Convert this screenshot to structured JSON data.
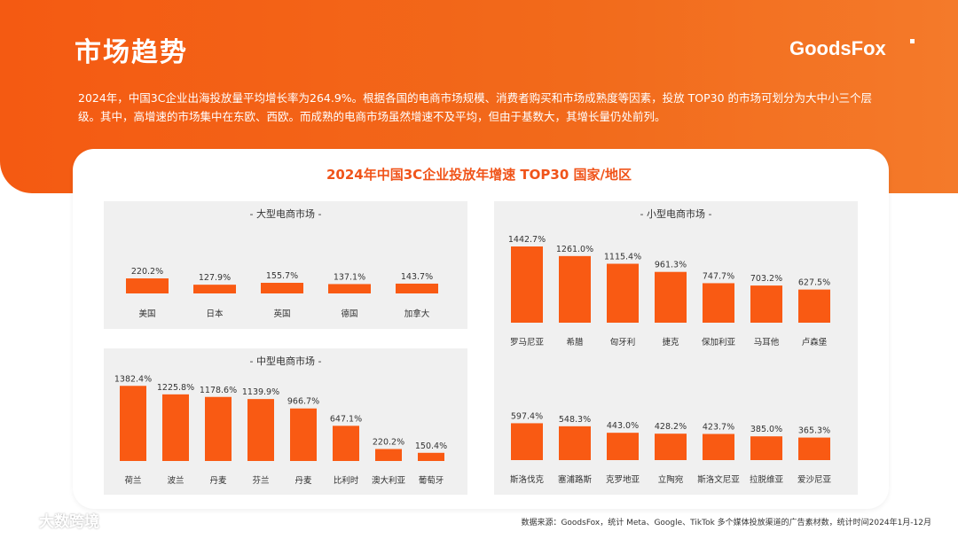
{
  "page": {
    "title": "市场趋势",
    "brand": "GoodsFox",
    "intro": "2024年，中国3C企业出海投放量平均增长率为264.9%。根据各国的电商市场规模、消费者购买和市场成熟度等因素，投放 TOP30 的市场可划分为大中小三个层级。其中，高增速的市场集中在东欧、西欧。而成熟的电商市场虽然增速不及平均，但由于基数大，其增长量仍处前列。",
    "chart_title": "2024年中国3C企业投放年增速 TOP30 国家/地区",
    "source": "数据来源：GoodsFox，统计 Meta、Google、TikTok 多个媒体投放渠道的广告素材数，统计时间2024年1月-12月",
    "watermark": "大数跨境",
    "colors": {
      "accent": "#f95a13",
      "header": "#f45a12",
      "panel_bg": "#f0f0f0"
    }
  },
  "chart_data": [
    {
      "id": "large",
      "type": "bar",
      "title": "- 大型电商市场 -",
      "unit": "%",
      "ylim": [
        0,
        1450
      ],
      "categories": [
        "美国",
        "日本",
        "英国",
        "德国",
        "加拿大"
      ],
      "values": [
        220.2,
        127.9,
        155.7,
        137.1,
        143.7
      ],
      "labels": [
        "220.2%",
        "127.9%",
        "155.7%",
        "137.1%",
        "143.7%"
      ]
    },
    {
      "id": "medium",
      "type": "bar",
      "title": "- 中型电商市场 -",
      "unit": "%",
      "ylim": [
        0,
        1450
      ],
      "categories": [
        "荷兰",
        "波兰",
        "丹麦",
        "芬兰",
        "丹麦",
        "比利时",
        "澳大利亚",
        "葡萄牙"
      ],
      "values": [
        1382.4,
        1225.8,
        1178.6,
        1139.9,
        966.7,
        647.1,
        220.2,
        150.4
      ],
      "labels": [
        "1382.4%",
        "1225.8%",
        "1178.6%",
        "1139.9%",
        "966.7%",
        "647.1%",
        "220.2%",
        "150.4%"
      ]
    },
    {
      "id": "small-1",
      "type": "bar",
      "title": "- 小型电商市场 -",
      "unit": "%",
      "ylim": [
        0,
        1450
      ],
      "categories": [
        "罗马尼亚",
        "希腊",
        "匈牙利",
        "捷克",
        "保加利亚",
        "马耳他",
        "卢森堡"
      ],
      "values": [
        1442.7,
        1261.0,
        1115.4,
        961.3,
        747.7,
        703.2,
        627.5
      ],
      "labels": [
        "1442.7%",
        "1261.0%",
        "1115.4%",
        "961.3%",
        "747.7%",
        "703.2%",
        "627.5%"
      ]
    },
    {
      "id": "small-2",
      "type": "bar",
      "title": "",
      "unit": "%",
      "ylim": [
        0,
        1450
      ],
      "categories": [
        "斯洛伐克",
        "塞浦路斯",
        "克罗地亚",
        "立陶宛",
        "斯洛文尼亚",
        "拉脱维亚",
        "爱沙尼亚"
      ],
      "values": [
        597.4,
        548.3,
        443.0,
        428.2,
        423.7,
        385.0,
        365.3
      ],
      "labels": [
        "597.4%",
        "548.3%",
        "443.0%",
        "428.2%",
        "423.7%",
        "385.0%",
        "365.3%"
      ]
    }
  ]
}
